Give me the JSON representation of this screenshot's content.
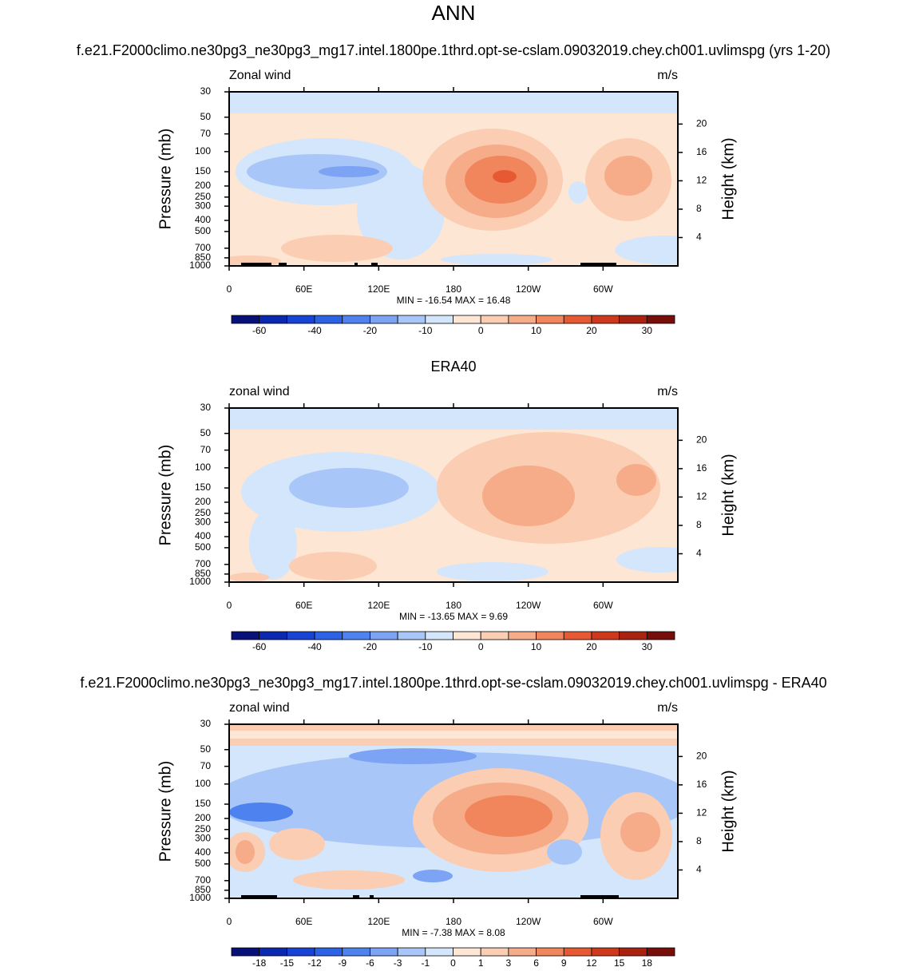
{
  "title": "ANN",
  "chart_data": [
    {
      "type": "contour",
      "title": "f.e21.F2000climo.ne30pg3_ne30pg3_mg17.intel.1800pe.1thrd.opt-se-cslam.09032019.chey.ch001.uvlimspg (yrs 1-20)",
      "left_label": "Zonal wind",
      "right_label": "m/s",
      "ylabel": "Pressure (mb)",
      "y2label": "Height (km)",
      "ylim": [
        1000,
        30
      ],
      "log_y": true,
      "yticks": [
        30,
        50,
        70,
        100,
        150,
        200,
        250,
        300,
        400,
        500,
        700,
        850,
        1000
      ],
      "y2ticks": [
        20,
        16,
        12,
        8,
        4
      ],
      "xlim": [
        0,
        360
      ],
      "xticks": [
        0,
        {
          "value": 60,
          "label": "60E"
        },
        {
          "value": 120,
          "label": "120E"
        },
        180,
        {
          "value": 240,
          "label": "120W"
        },
        {
          "value": 300,
          "label": "60W"
        }
      ],
      "stats": "MIN = -16.54  MAX = 16.48",
      "colorbar_labels": [
        -60,
        -40,
        -20,
        -10,
        0,
        10,
        20,
        30
      ]
    },
    {
      "type": "contour",
      "title": "ERA40",
      "left_label": "zonal wind",
      "right_label": "m/s",
      "ylabel": "Pressure (mb)",
      "y2label": "Height (km)",
      "ylim": [
        1000,
        30
      ],
      "log_y": true,
      "yticks": [
        30,
        50,
        70,
        100,
        150,
        200,
        250,
        300,
        400,
        500,
        700,
        850,
        1000
      ],
      "y2ticks": [
        20,
        16,
        12,
        8,
        4
      ],
      "xlim": [
        0,
        360
      ],
      "xticks": [
        0,
        {
          "value": 60,
          "label": "60E"
        },
        {
          "value": 120,
          "label": "120E"
        },
        180,
        {
          "value": 240,
          "label": "120W"
        },
        {
          "value": 300,
          "label": "60W"
        }
      ],
      "stats": "MIN = -13.65  MAX =   9.69",
      "colorbar_labels": [
        -60,
        -40,
        -20,
        -10,
        0,
        10,
        20,
        30
      ]
    },
    {
      "type": "contour",
      "title": "f.e21.F2000climo.ne30pg3_ne30pg3_mg17.intel.1800pe.1thrd.opt-se-cslam.09032019.chey.ch001.uvlimspg - ERA40",
      "left_label": "zonal wind",
      "right_label": "m/s",
      "ylabel": "Pressure (mb)",
      "y2label": "Height (km)",
      "ylim": [
        1000,
        30
      ],
      "log_y": true,
      "yticks": [
        30,
        50,
        70,
        100,
        150,
        200,
        250,
        300,
        400,
        500,
        700,
        850,
        1000
      ],
      "y2ticks": [
        20,
        16,
        12,
        8,
        4
      ],
      "xlim": [
        0,
        360
      ],
      "xticks": [
        0,
        {
          "value": 60,
          "label": "60E"
        },
        {
          "value": 120,
          "label": "120E"
        },
        180,
        {
          "value": 240,
          "label": "120W"
        },
        {
          "value": 300,
          "label": "60W"
        }
      ],
      "stats": "MIN =  -7.38  MAX =   8.08",
      "colorbar_labels": [
        -18,
        -15,
        -12,
        -9,
        -6,
        -3,
        -1,
        0,
        1,
        3,
        6,
        9,
        12,
        15,
        18
      ]
    }
  ],
  "colormap": [
    "#08107a",
    "#0a28b0",
    "#1844d6",
    "#2c62e6",
    "#4d82ef",
    "#7ca3f4",
    "#a8c6f8",
    "#d3e6fb",
    "#fde6d4",
    "#fbcdb2",
    "#f6ab89",
    "#f1855c",
    "#e75932",
    "#ce381b",
    "#aa2310",
    "#780e0a"
  ]
}
